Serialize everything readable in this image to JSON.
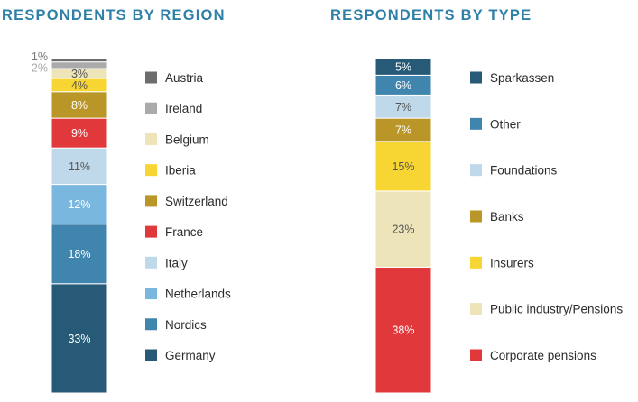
{
  "chart_data": [
    {
      "type": "bar",
      "stacked": true,
      "title": "RESPONDENTS BY REGION",
      "categories": [
        "Germany",
        "Nordics",
        "Netherlands",
        "Italy",
        "France",
        "Switzerland",
        "Iberia",
        "Belgium",
        "Ireland",
        "Austria"
      ],
      "values": [
        33,
        18,
        12,
        11,
        9,
        8,
        4,
        3,
        2,
        1
      ],
      "labels": [
        "33%",
        "18%",
        "12%",
        "11%",
        "9%",
        "8%",
        "4%",
        "3%",
        "2%",
        "1%"
      ],
      "colors": [
        "#275a77",
        "#4085ad",
        "#79b7df",
        "#bfd9ea",
        "#e0383b",
        "#b99627",
        "#f7d533",
        "#ede4b9",
        "#aaaaaa",
        "#6d6d6d"
      ],
      "label_colors": [
        "#ffffff",
        "#ffffff",
        "#ffffff",
        "#555555",
        "#ffffff",
        "#ffffff",
        "#555555",
        "#555555",
        "#aaaaaa",
        "#777777"
      ],
      "legend_order": [
        "Austria",
        "Ireland",
        "Belgium",
        "Iberia",
        "Switzerland",
        "France",
        "Italy",
        "Netherlands",
        "Nordics",
        "Germany"
      ],
      "legend_position": "right",
      "grid": false,
      "ylim": [
        0,
        101
      ]
    },
    {
      "type": "bar",
      "stacked": true,
      "title": "RESPONDENTS BY TYPE",
      "categories": [
        "Corporate pensions",
        "Public industry/Pensions",
        "Insurers",
        "Banks",
        "Foundations",
        "Other",
        "Sparkassen"
      ],
      "values": [
        38,
        23,
        15,
        7,
        7,
        6,
        5
      ],
      "labels": [
        "38%",
        "23%",
        "15%",
        "7%",
        "7%",
        "6%",
        "5%"
      ],
      "colors": [
        "#e0383b",
        "#ede4b9",
        "#f7d533",
        "#b99627",
        "#bfd9ea",
        "#4085ad",
        "#275a77"
      ],
      "label_colors": [
        "#ffffff",
        "#555555",
        "#555555",
        "#ffffff",
        "#555555",
        "#ffffff",
        "#ffffff"
      ],
      "legend_order": [
        "Sparkassen",
        "Other",
        "Foundations",
        "Banks",
        "Insurers",
        "Public industry/Pensions",
        "Corporate pensions"
      ],
      "legend_position": "right",
      "grid": false,
      "ylim": [
        0,
        101
      ]
    }
  ]
}
